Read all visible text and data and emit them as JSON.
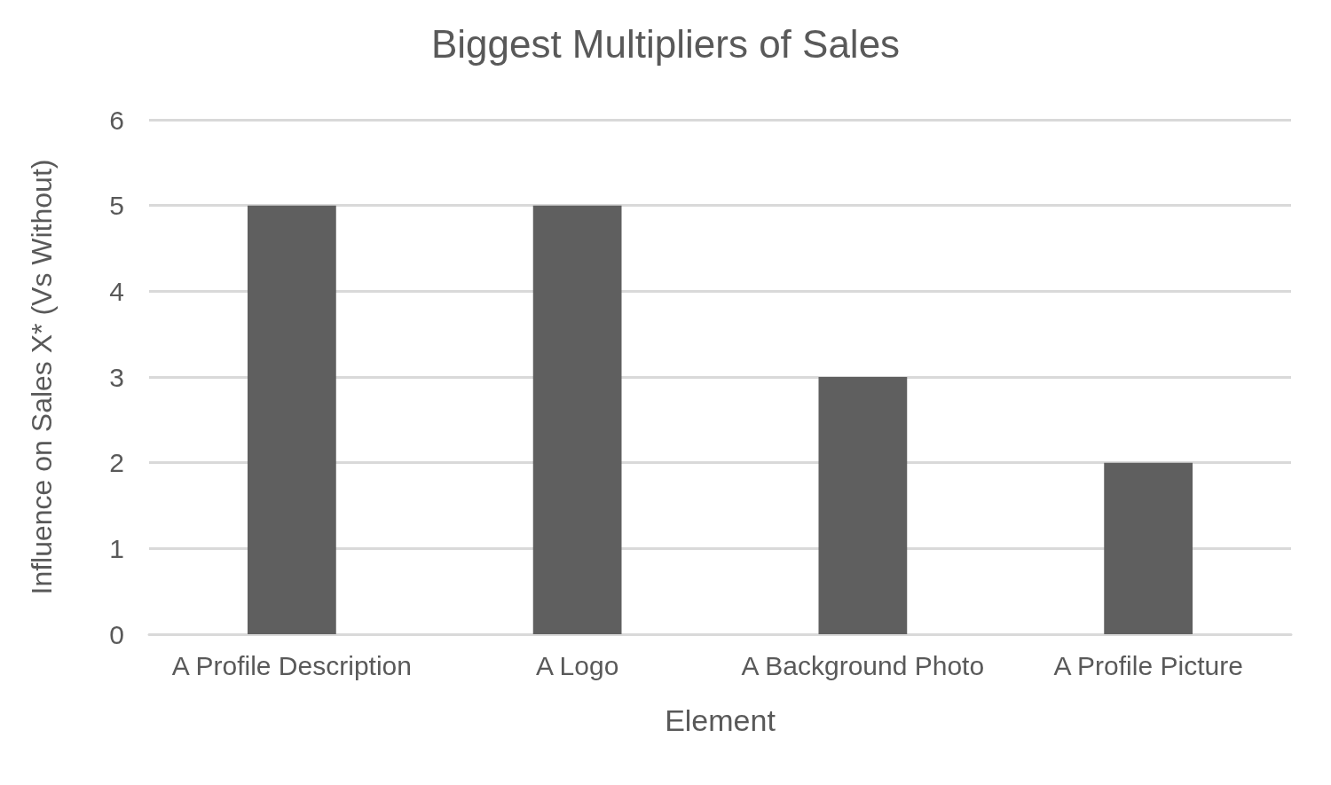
{
  "chart_data": {
    "type": "bar",
    "title": "Biggest Multipliers of Sales",
    "xlabel": "Element",
    "ylabel": "Influence on Sales X* (Vs Without)",
    "categories": [
      "A Profile Description",
      "A Logo",
      "A Background Photo",
      "A Profile Picture"
    ],
    "values": [
      5,
      5,
      3,
      2
    ],
    "color": "#5f5f5f",
    "ylim": [
      0,
      6
    ],
    "yticks": [
      0,
      1,
      2,
      3,
      4,
      5,
      6
    ],
    "grid": "y"
  }
}
